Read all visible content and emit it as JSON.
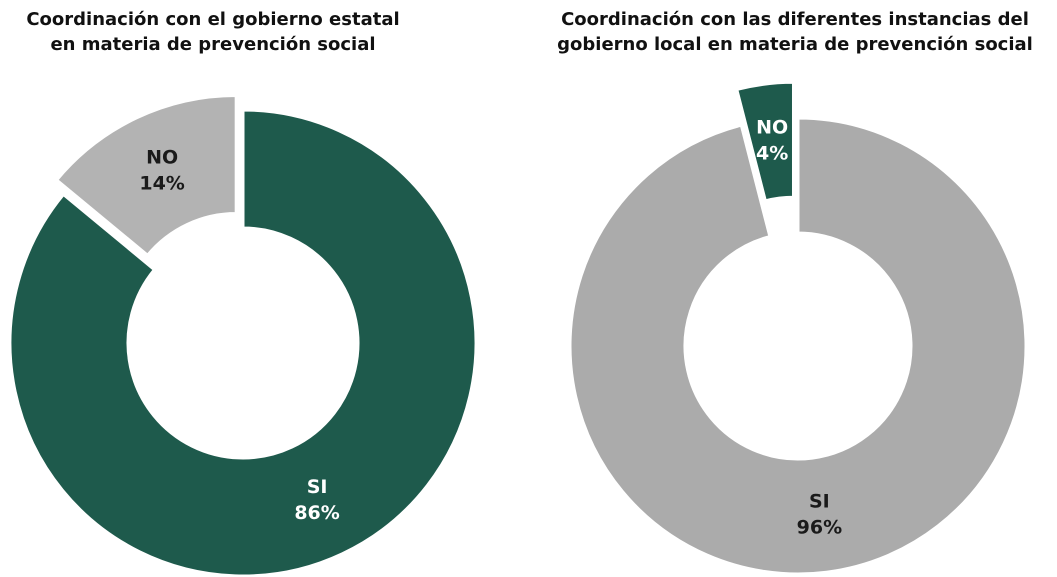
{
  "chart_data": [
    {
      "type": "donut",
      "title": [
        "Coordinación con el gobierno estatal",
        "en materia de prevención social"
      ],
      "categories": [
        "SI",
        "NO"
      ],
      "values": [
        86,
        14
      ],
      "value_labels": [
        "86%",
        "14%"
      ],
      "colors": [
        "#1e5a4c",
        "#b3b3b3"
      ],
      "exploded": [
        false,
        true
      ]
    },
    {
      "type": "donut",
      "title": [
        "Coordinación con las diferentes instancias del",
        "gobierno local en materia de prevención social"
      ],
      "categories": [
        "SI",
        "NO"
      ],
      "values": [
        96,
        4
      ],
      "value_labels": [
        "96%",
        "4%"
      ],
      "colors": [
        "#ababab",
        "#1e5a4c"
      ],
      "exploded": [
        false,
        true
      ]
    }
  ]
}
